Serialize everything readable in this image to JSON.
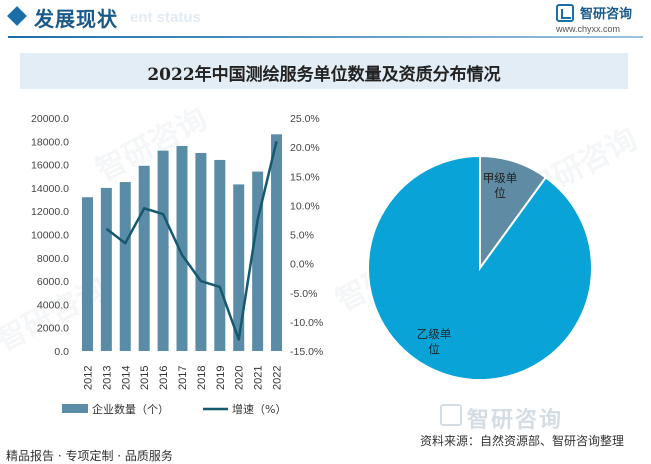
{
  "header": {
    "section_title": "发展现状",
    "section_ghost": "ent status",
    "brand_name": "智研咨询",
    "brand_url": "www.chyxx.com"
  },
  "title_bar": {
    "title": "2022年中国测绘服务单位数量及资质分布情况"
  },
  "watermark_text": "智研咨询",
  "chart_data": [
    {
      "type": "bar",
      "categories": [
        "2012",
        "2013",
        "2014",
        "2015",
        "2016",
        "2017",
        "2018",
        "2019",
        "2020",
        "2021",
        "2022"
      ],
      "series": [
        {
          "name": "企业数量（个）",
          "type": "bar",
          "axis": "left",
          "values": [
            13200,
            14000,
            14500,
            15900,
            17200,
            17600,
            17000,
            16400,
            14300,
            15400,
            18600
          ]
        },
        {
          "name": "增速（%）",
          "type": "line",
          "axis": "right",
          "values": [
            null,
            6.0,
            3.5,
            9.5,
            8.5,
            1.5,
            -3.0,
            -4.0,
            -13.0,
            7.5,
            21.0
          ]
        }
      ],
      "ylim_left": [
        0,
        20000
      ],
      "yticks_left": [
        "0.0",
        "2000.0",
        "4000.0",
        "6000.0",
        "8000.0",
        "10000.0",
        "12000.0",
        "14000.0",
        "16000.0",
        "18000.0",
        "20000.0"
      ],
      "ylim_right": [
        -15,
        25
      ],
      "yticks_right": [
        "-15.0%",
        "-10.0%",
        "-5.0%",
        "0.0%",
        "5.0%",
        "10.0%",
        "15.0%",
        "20.0%",
        "25.0%"
      ],
      "legend_position": "bottom",
      "colors": {
        "bar": "#5b8ca7",
        "line": "#16596f"
      }
    },
    {
      "type": "pie",
      "labels": [
        "甲级单位",
        "乙级单位"
      ],
      "values": [
        10,
        90
      ],
      "colors": [
        "#5f8ba5",
        "#0aa3d8"
      ]
    }
  ],
  "footer": {
    "left_text": "精品报告 · 专项定制 · 品质服务",
    "logo_text": "智研咨询",
    "source_text": "资料来源：自然资源部、智研咨询整理"
  }
}
